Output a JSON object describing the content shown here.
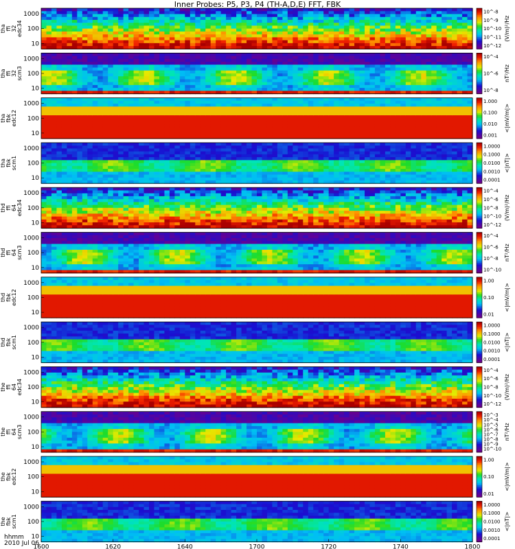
{
  "title": "Inner Probes: P5, P3, P4 (TH-A,D,E) FFT, FBK",
  "footer": {
    "time_label": "hhmm",
    "date_label": "2010 Jul 06"
  },
  "chart_data": {
    "type": "heatmap",
    "x_axis": {
      "range": [
        "16:00",
        "18:00"
      ],
      "ticks": [
        "1600",
        "1620",
        "1640",
        "1700",
        "1720",
        "1740",
        "1800"
      ]
    },
    "panels": [
      {
        "probe": "tha",
        "ylabel": [
          "tha",
          "ffi",
          "32",
          "edc34"
        ],
        "yticks": [
          "1000",
          "100",
          "10"
        ],
        "cbar_ticks": [
          "10^-8",
          "10^-9",
          "10^-10",
          "10^-11",
          "10^-12"
        ],
        "cbar_label": "(V/m)²/Hz",
        "cmap": "rainbow",
        "style": "edc"
      },
      {
        "probe": "tha",
        "ylabel": [
          "tha",
          "ffi",
          "32",
          "scm3"
        ],
        "yticks": [
          "1000",
          "100",
          "10"
        ],
        "cbar_ticks": [
          "10^-4",
          "10^-6",
          "10^-8"
        ],
        "cbar_label": "nT²/Hz",
        "cmap": "rainbow",
        "style": "scm"
      },
      {
        "probe": "tha",
        "ylabel": [
          "tha",
          "fbk",
          "edc12"
        ],
        "yticks": [
          "1000",
          "100",
          "10"
        ],
        "cbar_ticks": [
          "1.000",
          "0.100",
          "0.010",
          "0.001"
        ],
        "cbar_label": "<|mV/m|>",
        "cmap": "rainbow",
        "style": "fbk"
      },
      {
        "probe": "tha",
        "ylabel": [
          "tha",
          "fbk",
          "scm1"
        ],
        "yticks": [
          "1000",
          "100",
          "10"
        ],
        "cbar_ticks": [
          "1.0000",
          "0.1000",
          "0.0100",
          "0.0010",
          "0.0001"
        ],
        "cbar_label": "<|nT|>",
        "cmap": "rainbow",
        "style": "fbkscm"
      },
      {
        "probe": "thd",
        "ylabel": [
          "thd",
          "ffi",
          "64",
          "edc34"
        ],
        "yticks": [
          "1000",
          "100",
          "10"
        ],
        "cbar_ticks": [
          "10^-4",
          "10^-6",
          "10^-8",
          "10^-10",
          "10^-12"
        ],
        "cbar_label": "(V/m)²/Hz",
        "cmap": "rainbow",
        "style": "edc"
      },
      {
        "probe": "thd",
        "ylabel": [
          "thd",
          "ffi",
          "64",
          "scm3"
        ],
        "yticks": [
          "1000",
          "100",
          "10"
        ],
        "cbar_ticks": [
          "10^-4",
          "10^-6",
          "10^-8",
          "10^-10"
        ],
        "cbar_label": "nT²/Hz",
        "cmap": "rainbow",
        "style": "scm"
      },
      {
        "probe": "thd",
        "ylabel": [
          "thd",
          "fbk",
          "edc12"
        ],
        "yticks": [
          "1000",
          "100",
          "10"
        ],
        "cbar_ticks": [
          "1.00",
          "0.10",
          "0.01"
        ],
        "cbar_label": "<|mV/m|>",
        "cmap": "rainbow",
        "style": "fbk"
      },
      {
        "probe": "thd",
        "ylabel": [
          "thd",
          "fbk",
          "scm1"
        ],
        "yticks": [
          "1000",
          "100",
          "10"
        ],
        "cbar_ticks": [
          "1.0000",
          "0.1000",
          "0.0100",
          "0.0010",
          "0.0001"
        ],
        "cbar_label": "<|nT|>",
        "cmap": "rainbow",
        "style": "fbkscm"
      },
      {
        "probe": "the",
        "ylabel": [
          "the",
          "ffi",
          "64",
          "edc34"
        ],
        "yticks": [
          "1000",
          "100",
          "10"
        ],
        "cbar_ticks": [
          "10^-4",
          "10^-6",
          "10^-8",
          "10^-10",
          "10^-12"
        ],
        "cbar_label": "(V/m)²/Hz",
        "cmap": "rainbow",
        "style": "edc"
      },
      {
        "probe": "the",
        "ylabel": [
          "the",
          "ffi",
          "64",
          "scm3"
        ],
        "yticks": [
          "1000",
          "100",
          "10"
        ],
        "cbar_ticks": [
          "10^-3",
          "10^-4",
          "10^-5",
          "10^-6",
          "10^-7",
          "10^-8",
          "10^-9",
          "10^-10"
        ],
        "cbar_label": "nT²/Hz",
        "cmap": "rainbow",
        "style": "scm"
      },
      {
        "probe": "the",
        "ylabel": [
          "the",
          "fbk",
          "edc12"
        ],
        "yticks": [
          "1000",
          "100",
          "10"
        ],
        "cbar_ticks": [
          "1.00",
          "0.10",
          "0.01"
        ],
        "cbar_label": "<|mV/m|>",
        "cmap": "rainbow",
        "style": "fbk"
      },
      {
        "probe": "the",
        "ylabel": [
          "the",
          "fbk",
          "scm1"
        ],
        "yticks": [
          "1000",
          "100",
          "10"
        ],
        "cbar_ticks": [
          "1.0000",
          "0.1000",
          "0.0100",
          "0.0010",
          "0.0001"
        ],
        "cbar_label": "<|nT|>",
        "cmap": "rainbow",
        "style": "fbkscm"
      }
    ]
  }
}
